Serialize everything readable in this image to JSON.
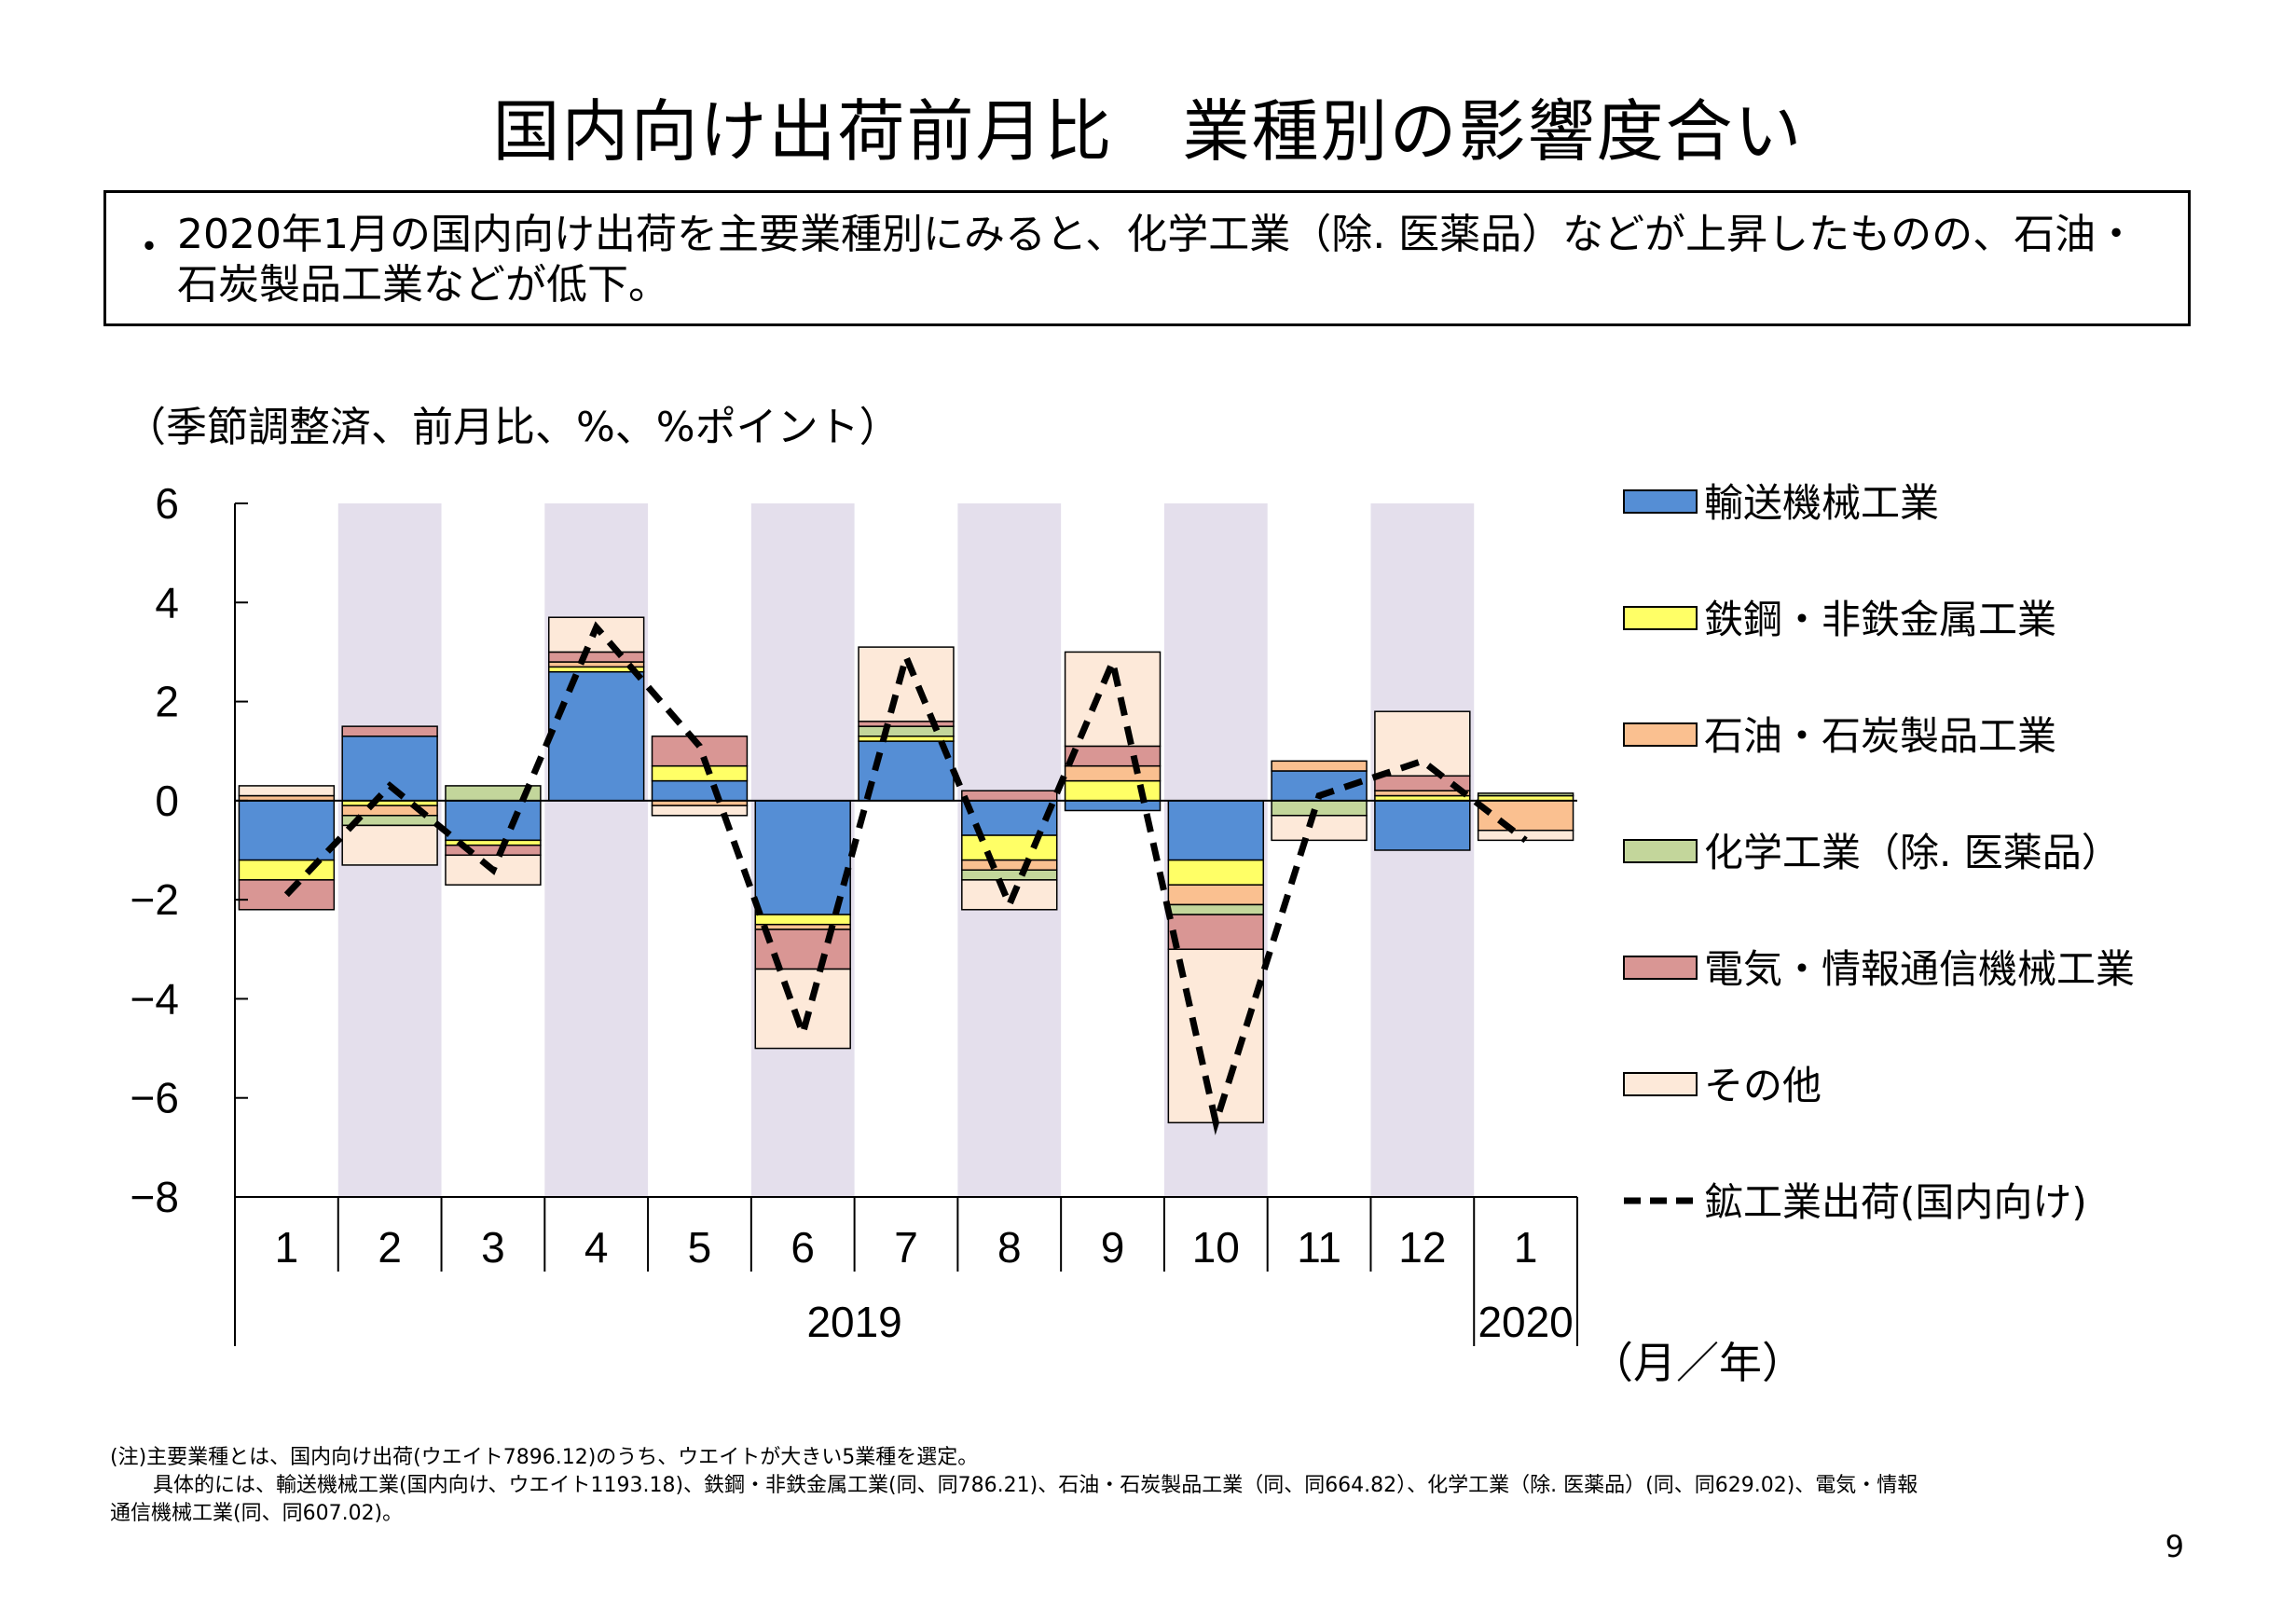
{
  "slide": {
    "title": "国内向け出荷前月比　業種別の影響度合い",
    "bullet": "・",
    "summary": "2020年1月の国内向け出荷を主要業種別にみると、化学工業（除. 医薬品）などが上昇したものの、石油・石炭製品工業などが低下。",
    "unit_label": "（季節調整済、前月比、%、%ポイント）",
    "note_line1": "(注)主要業種とは、国内向け出荷(ウエイト7896.12)のうち、ウエイトが大きい5業種を選定。",
    "note_line2": "具体的には、輸送機械工業(国内向け、ウエイト1193.18)、鉄鋼・非鉄金属工業(同、同786.21)、石油・石炭製品工業（同、同664.82）、化学工業（除. 医薬品）(同、同629.02)、電気・情報",
    "note_line3": "通信機械工業(同、同607.02)。",
    "page_number": "9"
  },
  "chart_data": {
    "type": "bar",
    "stacked": true,
    "categories": [
      "1",
      "2",
      "3",
      "4",
      "5",
      "6",
      "7",
      "8",
      "9",
      "10",
      "11",
      "12",
      "1"
    ],
    "year_labels": [
      "2019",
      "2020"
    ],
    "axis_unit": "（月／年）",
    "ylim": [
      -8,
      6
    ],
    "yticks": [
      6,
      4,
      2,
      0,
      -2,
      -4,
      -6,
      -8
    ],
    "ytick_labels": [
      "6",
      "4",
      "2",
      "0",
      "−2",
      "−4",
      "−6",
      "−8"
    ],
    "shaded_columns": [
      1,
      3,
      5,
      7,
      9,
      11
    ],
    "shade_color": "#e4dfec",
    "legend_position": "right",
    "series": [
      {
        "name": "輸送機械工業",
        "color": "#558ed5",
        "values": [
          -1.2,
          1.3,
          -0.8,
          2.6,
          0.4,
          -2.3,
          1.2,
          -0.7,
          -0.2,
          -1.2,
          0.6,
          -1.0,
          0.0
        ]
      },
      {
        "name": "鉄鋼・非鉄金属工業",
        "color": "#ffff66",
        "values": [
          -0.4,
          -0.1,
          -0.1,
          0.1,
          0.3,
          -0.2,
          0.1,
          -0.5,
          0.4,
          -0.5,
          0.0,
          0.1,
          0.1
        ]
      },
      {
        "name": "石油・石炭製品工業",
        "color": "#fac090",
        "values": [
          0.1,
          -0.2,
          0.0,
          0.1,
          -0.1,
          -0.1,
          0.0,
          -0.2,
          0.3,
          -0.4,
          0.2,
          0.1,
          -0.6
        ]
      },
      {
        "name": "化学工業（除. 医薬品）",
        "color": "#c3d69b",
        "values": [
          0.0,
          -0.2,
          0.3,
          0.0,
          0.0,
          0.0,
          0.2,
          -0.2,
          0.0,
          -0.2,
          -0.3,
          0.0,
          0.05
        ]
      },
      {
        "name": "電気・情報通信機械工業",
        "color": "#d99694",
        "values": [
          -0.6,
          0.2,
          -0.2,
          0.2,
          0.6,
          -0.8,
          0.1,
          0.2,
          0.4,
          -0.7,
          0.0,
          0.3,
          0.0
        ]
      },
      {
        "name": "その他",
        "color": "#fde9d9",
        "values": [
          0.2,
          -0.8,
          -0.6,
          0.7,
          -0.2,
          -1.6,
          1.5,
          -0.6,
          1.9,
          -3.5,
          -0.5,
          1.3,
          -0.2
        ]
      }
    ],
    "line": {
      "name": "鉱工業出荷(国内向け)",
      "style": "dashed",
      "values": [
        -1.9,
        0.3,
        -1.4,
        3.5,
        1.1,
        -4.7,
        2.9,
        -2.1,
        2.8,
        -6.5,
        0.1,
        0.8,
        -0.8
      ]
    }
  }
}
